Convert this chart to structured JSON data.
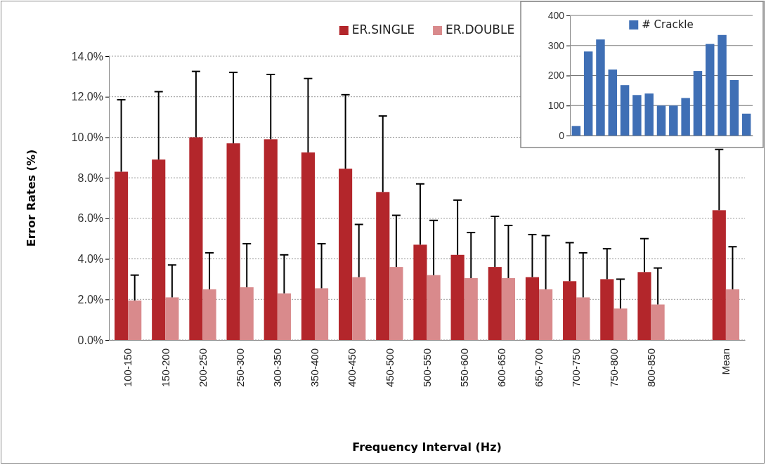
{
  "chart_data": [
    {
      "type": "bar",
      "xlabel": "Frequency Interval (Hz)",
      "ylabel": "Error Rates (%)",
      "categories": [
        "100-150",
        "150-200",
        "200-250",
        "250-300",
        "300-350",
        "350-400",
        "400-450",
        "450-500",
        "500-550",
        "550-600",
        "600-650",
        "650-700",
        "700-750",
        "750-800",
        "800-850",
        null,
        "Mean"
      ],
      "series": [
        {
          "name": "ER.SINGLE",
          "color": "#b3262b",
          "values": [
            8.3,
            8.9,
            10.0,
            9.7,
            9.9,
            9.25,
            8.45,
            7.3,
            4.7,
            4.2,
            3.6,
            3.1,
            2.9,
            3.0,
            3.35,
            null,
            6.4
          ],
          "errors": [
            [
              8.3,
              11.85
            ],
            [
              8.9,
              12.25
            ],
            [
              10.0,
              13.25
            ],
            [
              9.7,
              13.2
            ],
            [
              9.9,
              13.1
            ],
            [
              9.25,
              12.9
            ],
            [
              8.45,
              12.1
            ],
            [
              7.3,
              11.05
            ],
            [
              4.7,
              7.7
            ],
            [
              4.2,
              6.9
            ],
            [
              3.6,
              6.1
            ],
            [
              3.1,
              5.2
            ],
            [
              2.9,
              4.8
            ],
            [
              3.0,
              4.5
            ],
            [
              3.35,
              5.0
            ],
            null,
            [
              6.4,
              9.4
            ]
          ]
        },
        {
          "name": "ER.DOUBLE",
          "color": "#d98a8c",
          "values": [
            1.95,
            2.1,
            2.5,
            2.6,
            2.3,
            2.55,
            3.1,
            3.6,
            3.2,
            3.05,
            3.05,
            2.5,
            2.1,
            1.55,
            1.75,
            null,
            2.5
          ],
          "errors": [
            [
              1.95,
              3.2
            ],
            [
              2.1,
              3.7
            ],
            [
              2.5,
              4.3
            ],
            [
              2.6,
              4.75
            ],
            [
              2.3,
              4.2
            ],
            [
              2.55,
              4.75
            ],
            [
              3.1,
              5.7
            ],
            [
              3.6,
              6.15
            ],
            [
              3.2,
              5.9
            ],
            [
              3.05,
              5.3
            ],
            [
              3.05,
              5.65
            ],
            [
              2.5,
              5.15
            ],
            [
              2.1,
              4.3
            ],
            [
              1.55,
              3.0
            ],
            [
              1.75,
              3.55
            ],
            null,
            [
              2.5,
              4.6
            ]
          ]
        }
      ],
      "ylim": [
        0,
        14
      ],
      "yticks": [
        {
          "value": 0,
          "label": "0.0%"
        },
        {
          "value": 2,
          "label": "2.0%"
        },
        {
          "value": 4,
          "label": "4.0%"
        },
        {
          "value": 6,
          "label": "6.0%"
        },
        {
          "value": 8,
          "label": "8.0%"
        },
        {
          "value": 10,
          "label": "10.0%"
        },
        {
          "value": 12,
          "label": "12.0%"
        },
        {
          "value": 14,
          "label": "14.0%"
        }
      ],
      "grid": "y",
      "line_style": "dotted",
      "legend": "top"
    },
    {
      "type": "bar",
      "categories": [
        null,
        null,
        null,
        null,
        null,
        null,
        null,
        null,
        null,
        null,
        null,
        null,
        null,
        null,
        null
      ],
      "series": [
        {
          "name": "# Crackle",
          "color": "#3f6fb5",
          "values": [
            32,
            280,
            320,
            220,
            168,
            135,
            140,
            100,
            100,
            125,
            215,
            305,
            335,
            185,
            73
          ]
        }
      ],
      "ylim": [
        0,
        400
      ],
      "yticks": [
        0,
        100,
        200,
        300,
        400
      ],
      "grid": "y",
      "line_style": "solid",
      "legend": "top"
    }
  ]
}
